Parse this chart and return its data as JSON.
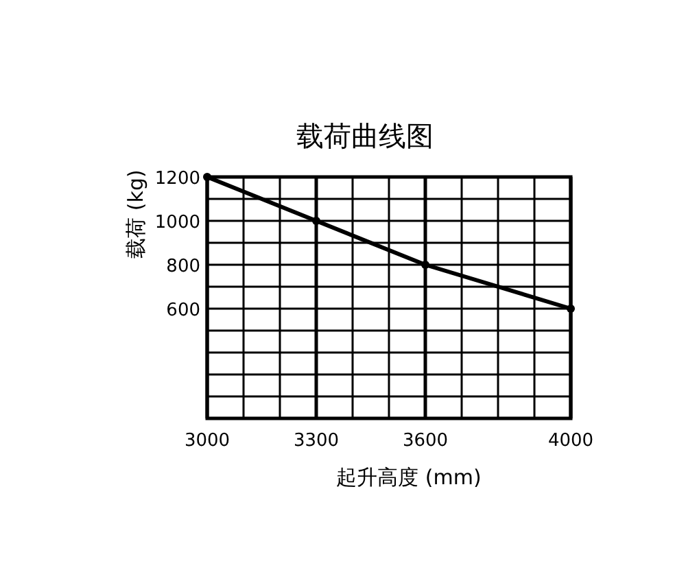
{
  "chart_data": {
    "type": "line",
    "title": "载荷曲线图",
    "xlabel": "起升高度 (mm)",
    "ylabel": "载荷 (kg)",
    "x": [
      3000,
      3300,
      3600,
      4000
    ],
    "series": [
      {
        "color": "#000000",
        "values": [
          1200,
          1000,
          800,
          600
        ]
      }
    ],
    "xlim": [
      3000,
      4000
    ],
    "xticks": [
      3000,
      {
        "value": 3100,
        "label": null
      },
      {
        "value": 3200,
        "label": null
      },
      3300,
      {
        "value": 3400,
        "label": null
      },
      {
        "value": 3500,
        "label": null
      },
      3600,
      {
        "value": 3700,
        "label": null
      },
      {
        "value": 3800,
        "label": null
      },
      {
        "value": 3900,
        "label": null
      },
      4000
    ],
    "ylim": [
      100,
      1200
    ],
    "yticks": [
      {
        "value": 100,
        "label": null
      },
      {
        "value": 200,
        "label": null
      },
      {
        "value": 300,
        "label": null
      },
      {
        "value": 400,
        "label": null
      },
      {
        "value": 500,
        "label": null
      },
      600,
      {
        "value": 700,
        "label": null
      },
      800,
      {
        "value": 900,
        "label": null
      },
      1000,
      {
        "value": 1100,
        "label": null
      },
      1200
    ],
    "grid": true,
    "marker": "circle",
    "line_style": "solid"
  }
}
